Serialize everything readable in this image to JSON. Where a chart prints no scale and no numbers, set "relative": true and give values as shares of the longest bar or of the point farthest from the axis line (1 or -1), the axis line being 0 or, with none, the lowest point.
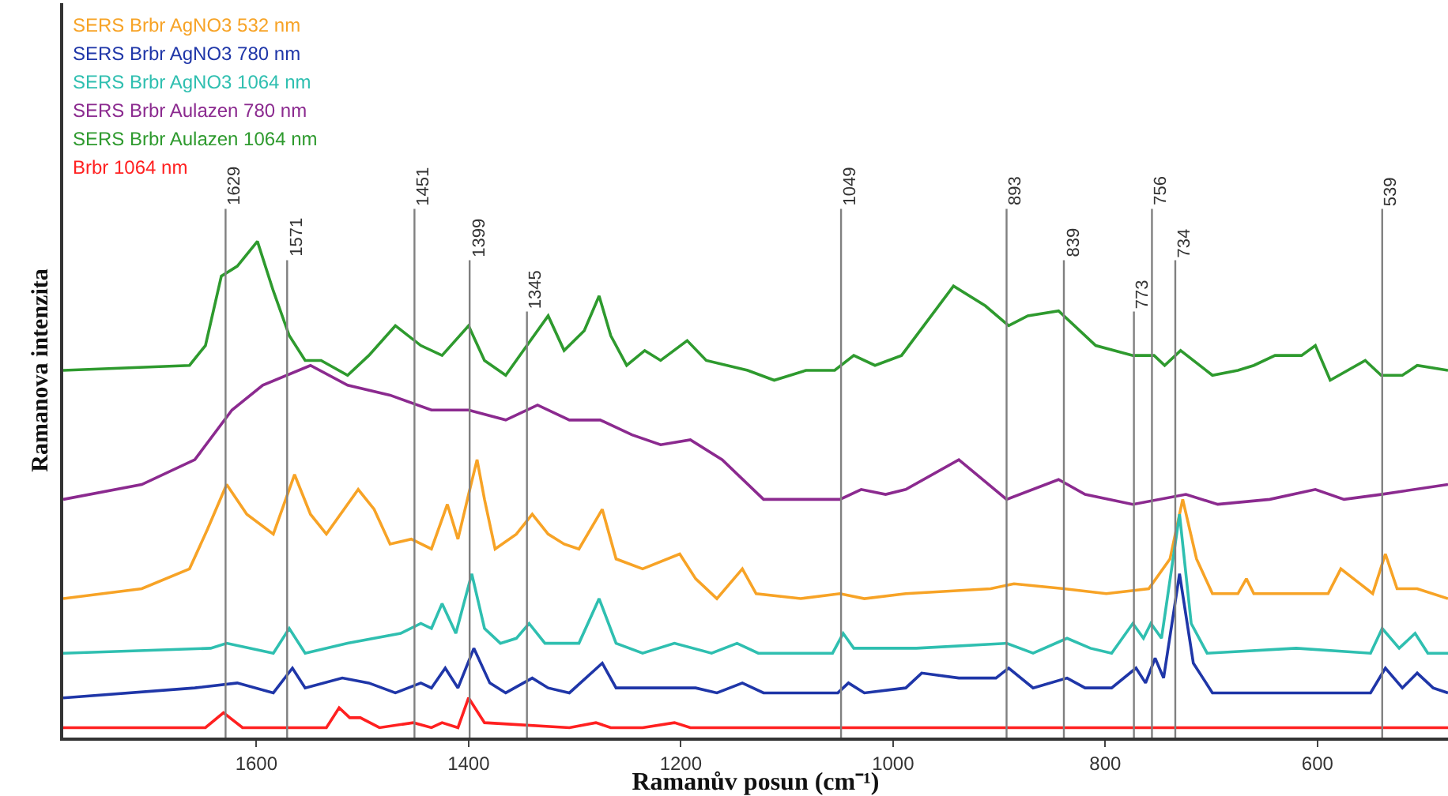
{
  "chart_data": {
    "type": "line",
    "relative": true,
    "xlabel": "Ramanův posun (cm⁻¹)",
    "ylabel": "Ramanova intenzita",
    "xlim": [
      1782,
      477
    ],
    "xticks": [
      1600,
      1400,
      1200,
      1000,
      800,
      600
    ],
    "legend": "top left",
    "marker": "none",
    "line_style": "solid",
    "series": [
      {
        "name": "SERS Brbr AgNO3 532 nm",
        "color": "#f7a326",
        "x": [
          1782,
          1708,
          1663,
          1646,
          1628,
          1609,
          1584,
          1564,
          1549,
          1534,
          1504,
          1489,
          1474,
          1454,
          1435,
          1420,
          1410,
          1400,
          1392,
          1385,
          1375,
          1355,
          1340,
          1325,
          1310,
          1296,
          1274,
          1261,
          1236,
          1201,
          1186,
          1166,
          1142,
          1129,
          1087,
          1050,
          1027,
          988,
          908,
          886,
          839,
          799,
          759,
          739,
          727,
          714,
          699,
          675,
          667,
          660,
          620,
          590,
          578,
          560,
          548,
          536,
          525,
          506,
          477
        ],
        "values": [
          0.28,
          0.3,
          0.34,
          0.42,
          0.51,
          0.45,
          0.41,
          0.53,
          0.45,
          0.41,
          0.5,
          0.46,
          0.39,
          0.4,
          0.38,
          0.47,
          0.4,
          0.49,
          0.56,
          0.48,
          0.38,
          0.41,
          0.45,
          0.41,
          0.39,
          0.38,
          0.46,
          0.36,
          0.34,
          0.37,
          0.32,
          0.28,
          0.34,
          0.29,
          0.28,
          0.29,
          0.28,
          0.29,
          0.3,
          0.31,
          0.3,
          0.29,
          0.3,
          0.36,
          0.48,
          0.36,
          0.29,
          0.29,
          0.32,
          0.29,
          0.29,
          0.29,
          0.34,
          0.31,
          0.29,
          0.37,
          0.3,
          0.3,
          0.28
        ]
      },
      {
        "name": "SERS Brbr AgNO3 780 nm",
        "color": "#1f36a8",
        "x": [
          1782,
          1658,
          1618,
          1584,
          1566,
          1554,
          1519,
          1494,
          1469,
          1445,
          1435,
          1422,
          1410,
          1395,
          1380,
          1365,
          1340,
          1325,
          1305,
          1274,
          1261,
          1186,
          1166,
          1142,
          1122,
          1087,
          1052,
          1042,
          1027,
          988,
          973,
          938,
          903,
          891,
          868,
          836,
          819,
          794,
          771,
          762,
          753,
          745,
          730,
          717,
          699,
          640,
          550,
          536,
          520,
          506,
          491,
          477
        ],
        "values": [
          0.08,
          0.1,
          0.11,
          0.09,
          0.14,
          0.1,
          0.12,
          0.11,
          0.09,
          0.11,
          0.1,
          0.14,
          0.1,
          0.18,
          0.11,
          0.09,
          0.12,
          0.1,
          0.09,
          0.15,
          0.1,
          0.1,
          0.09,
          0.11,
          0.09,
          0.09,
          0.09,
          0.11,
          0.09,
          0.1,
          0.13,
          0.12,
          0.12,
          0.14,
          0.1,
          0.12,
          0.1,
          0.1,
          0.14,
          0.11,
          0.16,
          0.12,
          0.33,
          0.15,
          0.09,
          0.09,
          0.09,
          0.14,
          0.1,
          0.13,
          0.1,
          0.09
        ]
      },
      {
        "name": "SERS Brbr AgNO3 1064 nm",
        "color": "#2fbfb0",
        "x": [
          1782,
          1643,
          1628,
          1584,
          1569,
          1554,
          1514,
          1464,
          1445,
          1435,
          1425,
          1412,
          1397,
          1385,
          1370,
          1355,
          1343,
          1328,
          1310,
          1296,
          1277,
          1261,
          1236,
          1206,
          1171,
          1147,
          1127,
          1057,
          1047,
          1037,
          978,
          893,
          868,
          836,
          814,
          794,
          774,
          764,
          757,
          747,
          730,
          719,
          704,
          620,
          550,
          539,
          523,
          508,
          496,
          477
        ],
        "values": [
          0.17,
          0.18,
          0.19,
          0.17,
          0.22,
          0.17,
          0.19,
          0.21,
          0.23,
          0.22,
          0.27,
          0.21,
          0.33,
          0.22,
          0.19,
          0.2,
          0.23,
          0.19,
          0.19,
          0.19,
          0.28,
          0.19,
          0.17,
          0.19,
          0.17,
          0.19,
          0.17,
          0.17,
          0.21,
          0.18,
          0.18,
          0.19,
          0.17,
          0.2,
          0.18,
          0.17,
          0.23,
          0.2,
          0.23,
          0.2,
          0.45,
          0.23,
          0.17,
          0.18,
          0.17,
          0.22,
          0.18,
          0.21,
          0.17,
          0.17
        ]
      },
      {
        "name": "SERS Brbr Aulazen 780 nm",
        "color": "#8b2a8f",
        "x": [
          1782,
          1708,
          1658,
          1623,
          1594,
          1549,
          1514,
          1474,
          1435,
          1400,
          1365,
          1335,
          1305,
          1276,
          1246,
          1219,
          1191,
          1161,
          1122,
          1082,
          1050,
          1030,
          1007,
          988,
          938,
          893,
          844,
          819,
          774,
          724,
          694,
          645,
          602,
          575,
          540,
          477
        ],
        "values": [
          0.48,
          0.51,
          0.56,
          0.66,
          0.71,
          0.75,
          0.71,
          0.69,
          0.66,
          0.66,
          0.64,
          0.67,
          0.64,
          0.64,
          0.61,
          0.59,
          0.6,
          0.56,
          0.48,
          0.48,
          0.48,
          0.5,
          0.49,
          0.5,
          0.56,
          0.48,
          0.52,
          0.49,
          0.47,
          0.49,
          0.47,
          0.48,
          0.5,
          0.48,
          0.49,
          0.51
        ]
      },
      {
        "name": "SERS Brbr Aulazen 1064 nm",
        "color": "#2e9a2e",
        "x": [
          1782,
          1663,
          1648,
          1633,
          1618,
          1599,
          1584,
          1569,
          1554,
          1539,
          1514,
          1494,
          1469,
          1445,
          1425,
          1400,
          1385,
          1365,
          1345,
          1325,
          1310,
          1291,
          1277,
          1266,
          1251,
          1234,
          1219,
          1194,
          1176,
          1137,
          1112,
          1082,
          1055,
          1037,
          1017,
          992,
          943,
          913,
          891,
          873,
          844,
          809,
          774,
          754,
          744,
          729,
          699,
          675,
          660,
          640,
          615,
          602,
          588,
          555,
          540,
          520,
          506,
          477
        ],
        "values": [
          0.74,
          0.75,
          0.79,
          0.93,
          0.95,
          1.0,
          0.9,
          0.81,
          0.76,
          0.76,
          0.73,
          0.77,
          0.83,
          0.79,
          0.77,
          0.83,
          0.76,
          0.73,
          0.79,
          0.85,
          0.78,
          0.82,
          0.89,
          0.81,
          0.75,
          0.78,
          0.76,
          0.8,
          0.76,
          0.74,
          0.72,
          0.74,
          0.74,
          0.77,
          0.75,
          0.77,
          0.91,
          0.87,
          0.83,
          0.85,
          0.86,
          0.79,
          0.77,
          0.77,
          0.75,
          0.78,
          0.73,
          0.74,
          0.75,
          0.77,
          0.77,
          0.79,
          0.72,
          0.76,
          0.73,
          0.73,
          0.75,
          0.74
        ]
      },
      {
        "name": "Brbr 1064 nm",
        "color": "#ff2020",
        "x": [
          1782,
          1648,
          1631,
          1613,
          1534,
          1522,
          1512,
          1502,
          1484,
          1452,
          1435,
          1425,
          1410,
          1400,
          1385,
          1305,
          1280,
          1266,
          1236,
          1206,
          1191,
          858,
          729,
          477
        ],
        "values": [
          0.02,
          0.02,
          0.05,
          0.02,
          0.02,
          0.06,
          0.04,
          0.04,
          0.02,
          0.03,
          0.02,
          0.03,
          0.02,
          0.08,
          0.03,
          0.02,
          0.03,
          0.02,
          0.02,
          0.03,
          0.02,
          0.02,
          0.02,
          0.02
        ]
      }
    ],
    "ref_lines": [
      {
        "axis": "x",
        "value": 1629,
        "label": "1629",
        "color": "#808080"
      },
      {
        "axis": "x",
        "value": 1571,
        "label": "1571",
        "color": "#808080"
      },
      {
        "axis": "x",
        "value": 1451,
        "label": "1451",
        "color": "#808080"
      },
      {
        "axis": "x",
        "value": 1399,
        "label": "1399",
        "color": "#808080"
      },
      {
        "axis": "x",
        "value": 1345,
        "label": "1345",
        "color": "#808080"
      },
      {
        "axis": "x",
        "value": 1049,
        "label": "1049",
        "color": "#808080"
      },
      {
        "axis": "x",
        "value": 893,
        "label": "893",
        "color": "#808080"
      },
      {
        "axis": "x",
        "value": 839,
        "label": "839",
        "color": "#808080"
      },
      {
        "axis": "x",
        "value": 773,
        "label": "773",
        "color": "#808080"
      },
      {
        "axis": "x",
        "value": 756,
        "label": "756",
        "color": "#808080"
      },
      {
        "axis": "x",
        "value": 734,
        "label": "734",
        "color": "#808080"
      },
      {
        "axis": "x",
        "value": 539,
        "label": "539",
        "color": "#808080"
      }
    ]
  }
}
